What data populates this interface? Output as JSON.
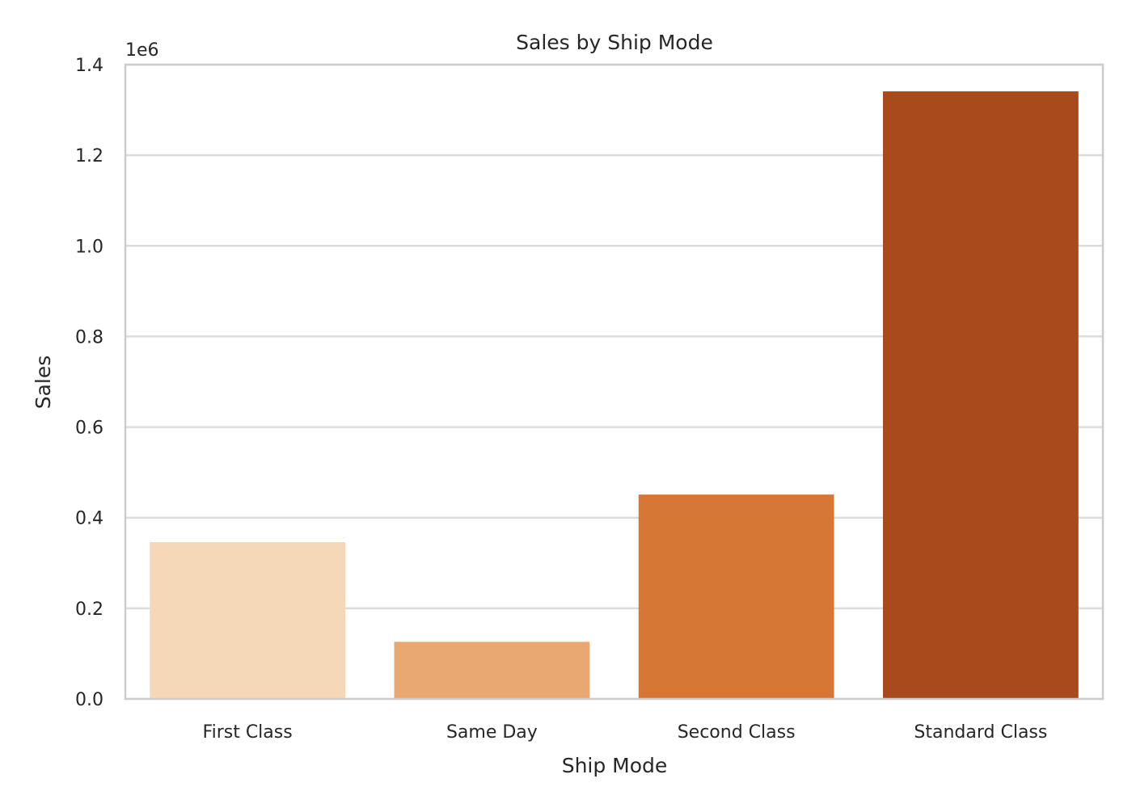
{
  "chart_data": {
    "type": "bar",
    "title": "Sales by Ship Mode",
    "xlabel": "Ship Mode",
    "ylabel": "Sales",
    "y_offset_label": "1e6",
    "categories": [
      "First Class",
      "Same Day",
      "Second Class",
      "Standard Class"
    ],
    "values": [
      346000,
      126000,
      451000,
      1341000
    ],
    "colors": [
      "#f4d8b8",
      "#e9a772",
      "#d77735",
      "#a84a1b"
    ],
    "ylim": [
      0,
      1400000
    ],
    "yticks": [
      0,
      200000,
      400000,
      600000,
      800000,
      1000000,
      1200000,
      1400000
    ],
    "ytick_labels": [
      "0.0",
      "0.2",
      "0.4",
      "0.6",
      "0.8",
      "1.0",
      "1.2",
      "1.4"
    ],
    "grid": "y",
    "grid_color": "#dcdcdc",
    "frame_color": "#cccccc"
  }
}
